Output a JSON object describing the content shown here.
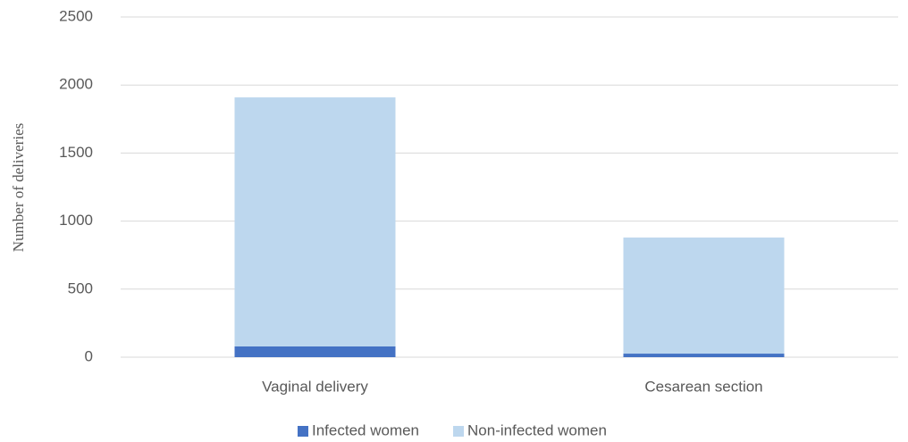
{
  "chart_data": {
    "type": "stacked_bar",
    "y_label": "Number of deliveries",
    "categories": [
      "Vaginal delivery",
      "Cesarean section"
    ],
    "series": [
      {
        "name": "Infected women",
        "color": "#4472c4",
        "values": [
          79,
          26
        ]
      },
      {
        "name": "Non-infected women",
        "color": "#bdd7ee",
        "values": [
          1830,
          853
        ]
      }
    ],
    "ylim": [
      0,
      2500
    ],
    "yticks": [
      0,
      500,
      1000,
      1500,
      2000,
      2500
    ],
    "grid": true,
    "legend": "bottom"
  }
}
